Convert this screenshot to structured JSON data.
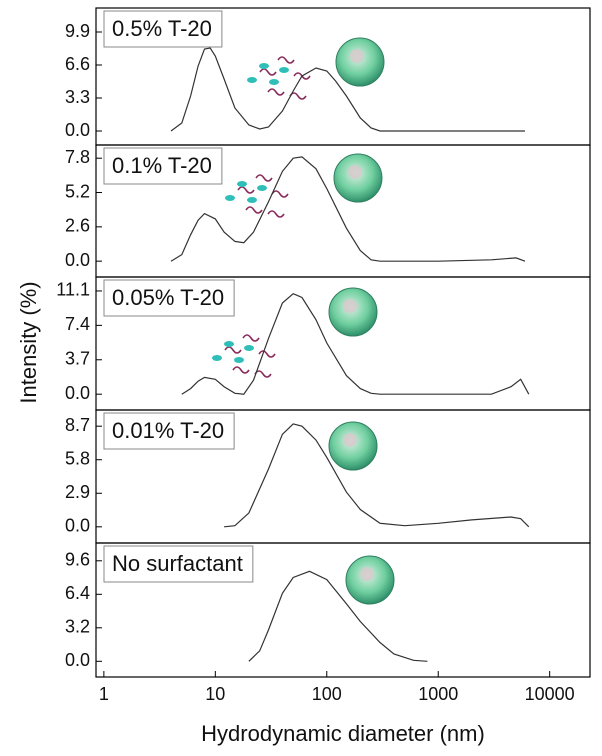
{
  "chart_data": [
    {
      "type": "line",
      "title": "0.5% T-20",
      "xscale": "log",
      "xlim": [
        0.85,
        23000
      ],
      "ylim": [
        -1.4,
        12.3
      ],
      "yticks": [
        {
          "value": 0,
          "label": "0.0"
        },
        3.3,
        6.6,
        9.9
      ],
      "color": "#333333",
      "x": [
        4,
        5,
        6,
        7,
        8,
        9,
        10,
        12,
        15,
        20,
        25,
        30,
        40,
        50,
        60,
        80,
        100,
        120,
        150,
        200,
        250,
        300,
        6000
      ],
      "values": [
        0,
        0.8,
        3.5,
        6.5,
        8.2,
        8.3,
        7.5,
        5.2,
        2.3,
        0.6,
        0.2,
        0.4,
        2.0,
        4.0,
        5.5,
        6.3,
        6.0,
        5.0,
        3.5,
        1.3,
        0.3,
        0,
        0
      ]
    },
    {
      "type": "line",
      "title": "0.1% T-20",
      "xscale": "log",
      "xlim": [
        0.85,
        23000
      ],
      "ylim": [
        -1.2,
        8.8
      ],
      "yticks": [
        {
          "value": 0,
          "label": "0.0"
        },
        2.6,
        5.2,
        7.8
      ],
      "color": "#333333",
      "x": [
        4,
        5,
        6,
        7,
        8,
        10,
        12,
        15,
        18,
        22,
        30,
        40,
        50,
        60,
        80,
        100,
        150,
        200,
        250,
        300,
        1000,
        3000,
        5000,
        6000
      ],
      "values": [
        0,
        0.5,
        2.0,
        3.1,
        3.6,
        3.2,
        2.2,
        1.5,
        1.4,
        2.2,
        4.5,
        6.8,
        7.8,
        7.9,
        7.0,
        5.5,
        2.5,
        0.8,
        0.1,
        0,
        0,
        0.1,
        0.25,
        0
      ]
    },
    {
      "type": "line",
      "title": "0.05% T-20",
      "xscale": "log",
      "xlim": [
        0.85,
        23000
      ],
      "ylim": [
        -1.7,
        12.6
      ],
      "yticks": [
        {
          "value": 0,
          "label": "0.0"
        },
        3.7,
        7.4,
        11.1
      ],
      "color": "#333333",
      "x": [
        5,
        6,
        7,
        8,
        10,
        12,
        15,
        18,
        22,
        30,
        40,
        50,
        60,
        80,
        100,
        150,
        200,
        250,
        300,
        3000,
        4500,
        5500,
        6500
      ],
      "values": [
        0,
        0.6,
        1.4,
        1.8,
        1.6,
        0.8,
        0.1,
        0,
        1.5,
        6.0,
        9.8,
        10.8,
        10.4,
        8.0,
        5.5,
        2.0,
        0.6,
        0.1,
        0,
        0,
        0.8,
        1.6,
        0
      ]
    },
    {
      "type": "line",
      "title": "0.01% T-20",
      "xscale": "log",
      "xlim": [
        0.85,
        23000
      ],
      "ylim": [
        -1.4,
        10.1
      ],
      "yticks": [
        {
          "value": 0,
          "label": "0.0"
        },
        2.9,
        5.8,
        8.7
      ],
      "color": "#333333",
      "x": [
        12,
        15,
        20,
        30,
        40,
        50,
        60,
        80,
        100,
        150,
        200,
        300,
        500,
        1000,
        2000,
        4500,
        5500,
        6500
      ],
      "values": [
        0,
        0.1,
        1.2,
        5.0,
        8.0,
        8.9,
        8.7,
        7.5,
        6.0,
        3.0,
        1.5,
        0.3,
        0.1,
        0.3,
        0.6,
        0.85,
        0.7,
        0
      ]
    },
    {
      "type": "line",
      "title": "No surfactant",
      "xscale": "log",
      "xlim": [
        0.85,
        23000
      ],
      "ylim": [
        -1.5,
        11.3
      ],
      "yticks": [
        {
          "value": 0,
          "label": "0.0"
        },
        3.2,
        6.4,
        9.6
      ],
      "color": "#333333",
      "x": [
        20,
        25,
        30,
        40,
        50,
        70,
        100,
        150,
        200,
        300,
        400,
        600,
        800
      ],
      "values": [
        0,
        1.0,
        3.0,
        6.5,
        8.0,
        8.6,
        7.8,
        5.5,
        3.8,
        1.8,
        0.7,
        0.1,
        0
      ],
      "xticks": [
        1,
        10,
        100,
        1000,
        10000
      ],
      "xlabel": "Hydrodynamic diameter (nm)",
      "ylabel": "Intensity (%)"
    }
  ]
}
